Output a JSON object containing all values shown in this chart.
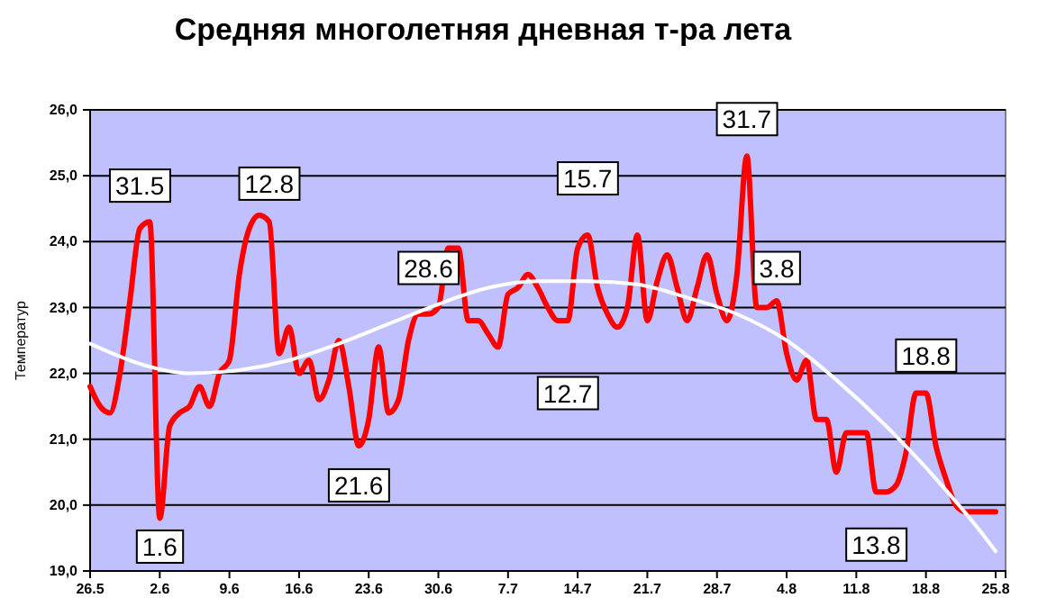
{
  "chart_data": {
    "type": "line",
    "title": "Средняя многолетняя дневная т-ра лета",
    "ylabel": "Температур",
    "xlim": [
      "--05-26",
      "--08-26"
    ],
    "ylim": [
      19,
      26
    ],
    "xticks": [
      {
        "value": "--05-26",
        "label": "26.5"
      },
      {
        "value": "--06-02",
        "label": "2.6"
      },
      {
        "value": "--06-09",
        "label": "9.6"
      },
      {
        "value": "--06-16",
        "label": "16.6"
      },
      {
        "value": "--06-23",
        "label": "23.6"
      },
      {
        "value": "--06-30",
        "label": "30.6"
      },
      {
        "value": "--07-07",
        "label": "7.7"
      },
      {
        "value": "--07-14",
        "label": "14.7"
      },
      {
        "value": "--07-21",
        "label": "21.7"
      },
      {
        "value": "--07-28",
        "label": "28.7"
      },
      {
        "value": "--08-04",
        "label": "4.8"
      },
      {
        "value": "--08-11",
        "label": "11.8"
      },
      {
        "value": "--08-18",
        "label": "18.8"
      },
      {
        "value": "--08-25",
        "label": "25.8"
      }
    ],
    "yticks": [
      {
        "value": 19,
        "label": "19,0"
      },
      {
        "value": 20,
        "label": "20,0"
      },
      {
        "value": 21,
        "label": "21,0"
      },
      {
        "value": 22,
        "label": "22,0"
      },
      {
        "value": 23,
        "label": "23,0"
      },
      {
        "value": 24,
        "label": "24,0"
      },
      {
        "value": 25,
        "label": "25,0"
      },
      {
        "value": 26,
        "label": "26,0"
      }
    ],
    "grid": "y",
    "marker": "none",
    "line_style": "solid",
    "series": [
      {
        "color": "#ff0000",
        "x": [
          "--05-26",
          "--05-27",
          "--05-28",
          "--05-29",
          "--05-30",
          "--05-31",
          "--06-01",
          "--06-02",
          "--06-03",
          "--06-04",
          "--06-05",
          "--06-06",
          "--06-07",
          "--06-08",
          "--06-09",
          "--06-10",
          "--06-11",
          "--06-12",
          "--06-13",
          "--06-14",
          "--06-15",
          "--06-16",
          "--06-17",
          "--06-18",
          "--06-19",
          "--06-20",
          "--06-21",
          "--06-22",
          "--06-23",
          "--06-24",
          "--06-25",
          "--06-26",
          "--06-27",
          "--06-28",
          "--06-29",
          "--06-30",
          "--07-01",
          "--07-02",
          "--07-03",
          "--07-04",
          "--07-05",
          "--07-06",
          "--07-07",
          "--07-08",
          "--07-09",
          "--07-10",
          "--07-11",
          "--07-12",
          "--07-13",
          "--07-14",
          "--07-15",
          "--07-16",
          "--07-17",
          "--07-18",
          "--07-19",
          "--07-20",
          "--07-21",
          "--07-22",
          "--07-23",
          "--07-24",
          "--07-25",
          "--07-26",
          "--07-27",
          "--07-28",
          "--07-29",
          "--07-30",
          "--07-31",
          "--08-01",
          "--08-02",
          "--08-03",
          "--08-04",
          "--08-05",
          "--08-06",
          "--08-07",
          "--08-08",
          "--08-09",
          "--08-10",
          "--08-11",
          "--08-12",
          "--08-13",
          "--08-14",
          "--08-15",
          "--08-16",
          "--08-17",
          "--08-18",
          "--08-19",
          "--08-20",
          "--08-21",
          "--08-22",
          "--08-23",
          "--08-24",
          "--08-25"
        ],
        "values": [
          21.8,
          21.5,
          21.4,
          22.0,
          23.1,
          24.2,
          24.3,
          19.8,
          21.2,
          21.4,
          21.5,
          21.8,
          21.5,
          22.0,
          22.2,
          23.5,
          24.2,
          24.4,
          24.3,
          22.3,
          22.7,
          22.0,
          22.2,
          21.6,
          21.9,
          22.5,
          21.8,
          20.9,
          21.3,
          22.4,
          21.4,
          21.6,
          22.5,
          22.9,
          22.9,
          23.0,
          23.9,
          23.9,
          22.8,
          22.8,
          22.6,
          22.4,
          23.2,
          23.3,
          23.5,
          23.3,
          23.0,
          22.8,
          22.8,
          23.9,
          24.1,
          23.3,
          22.9,
          22.7,
          23.0,
          24.1,
          22.8,
          23.4,
          23.8,
          23.3,
          22.8,
          23.3,
          23.8,
          23.2,
          22.8,
          23.5,
          25.3,
          23.0,
          23.0,
          23.1,
          22.3,
          21.9,
          22.2,
          21.3,
          21.3,
          20.5,
          21.1,
          21.1,
          21.1,
          20.2,
          20.2,
          20.3,
          20.8,
          21.7,
          21.7,
          20.9,
          20.4,
          20.0,
          19.9,
          19.9,
          19.9,
          19.9
        ]
      },
      {
        "type": "line",
        "color": "#ffffff",
        "x": [
          "--05-26",
          "--06-01",
          "--06-05",
          "--06-10",
          "--06-15",
          "--06-20",
          "--06-25",
          "--06-30",
          "--07-05",
          "--07-10",
          "--07-15",
          "--07-20",
          "--07-25",
          "--07-30",
          "--08-04",
          "--08-09",
          "--08-14",
          "--08-19",
          "--08-24",
          "--08-25"
        ],
        "values": [
          22.45,
          22.1,
          22.0,
          22.05,
          22.2,
          22.45,
          22.75,
          23.05,
          23.3,
          23.4,
          23.4,
          23.35,
          23.15,
          22.9,
          22.5,
          21.9,
          21.2,
          20.4,
          19.5,
          19.3
        ]
      }
    ],
    "annotations": [
      {
        "text": "31.5",
        "x": "--05-31",
        "y": 24.85
      },
      {
        "text": "1.6",
        "x": "--06-02",
        "y": 19.37
      },
      {
        "text": "12.8",
        "x": "--06-13",
        "y": 24.88
      },
      {
        "text": "21.6",
        "x": "--06-22",
        "y": 20.3
      },
      {
        "text": "28.6",
        "x": "--06-29",
        "y": 23.6
      },
      {
        "text": "15.7",
        "x": "--07-15",
        "y": 24.96
      },
      {
        "text": "12.7",
        "x": "--07-13",
        "y": 21.7
      },
      {
        "text": "31.7",
        "x": "--07-31",
        "y": 25.86
      },
      {
        "text": "3.8",
        "x": "--08-03",
        "y": 23.6
      },
      {
        "text": "18.8",
        "x": "--08-18",
        "y": 22.27
      },
      {
        "text": "13.8",
        "x": "--08-13",
        "y": 19.4
      }
    ]
  }
}
